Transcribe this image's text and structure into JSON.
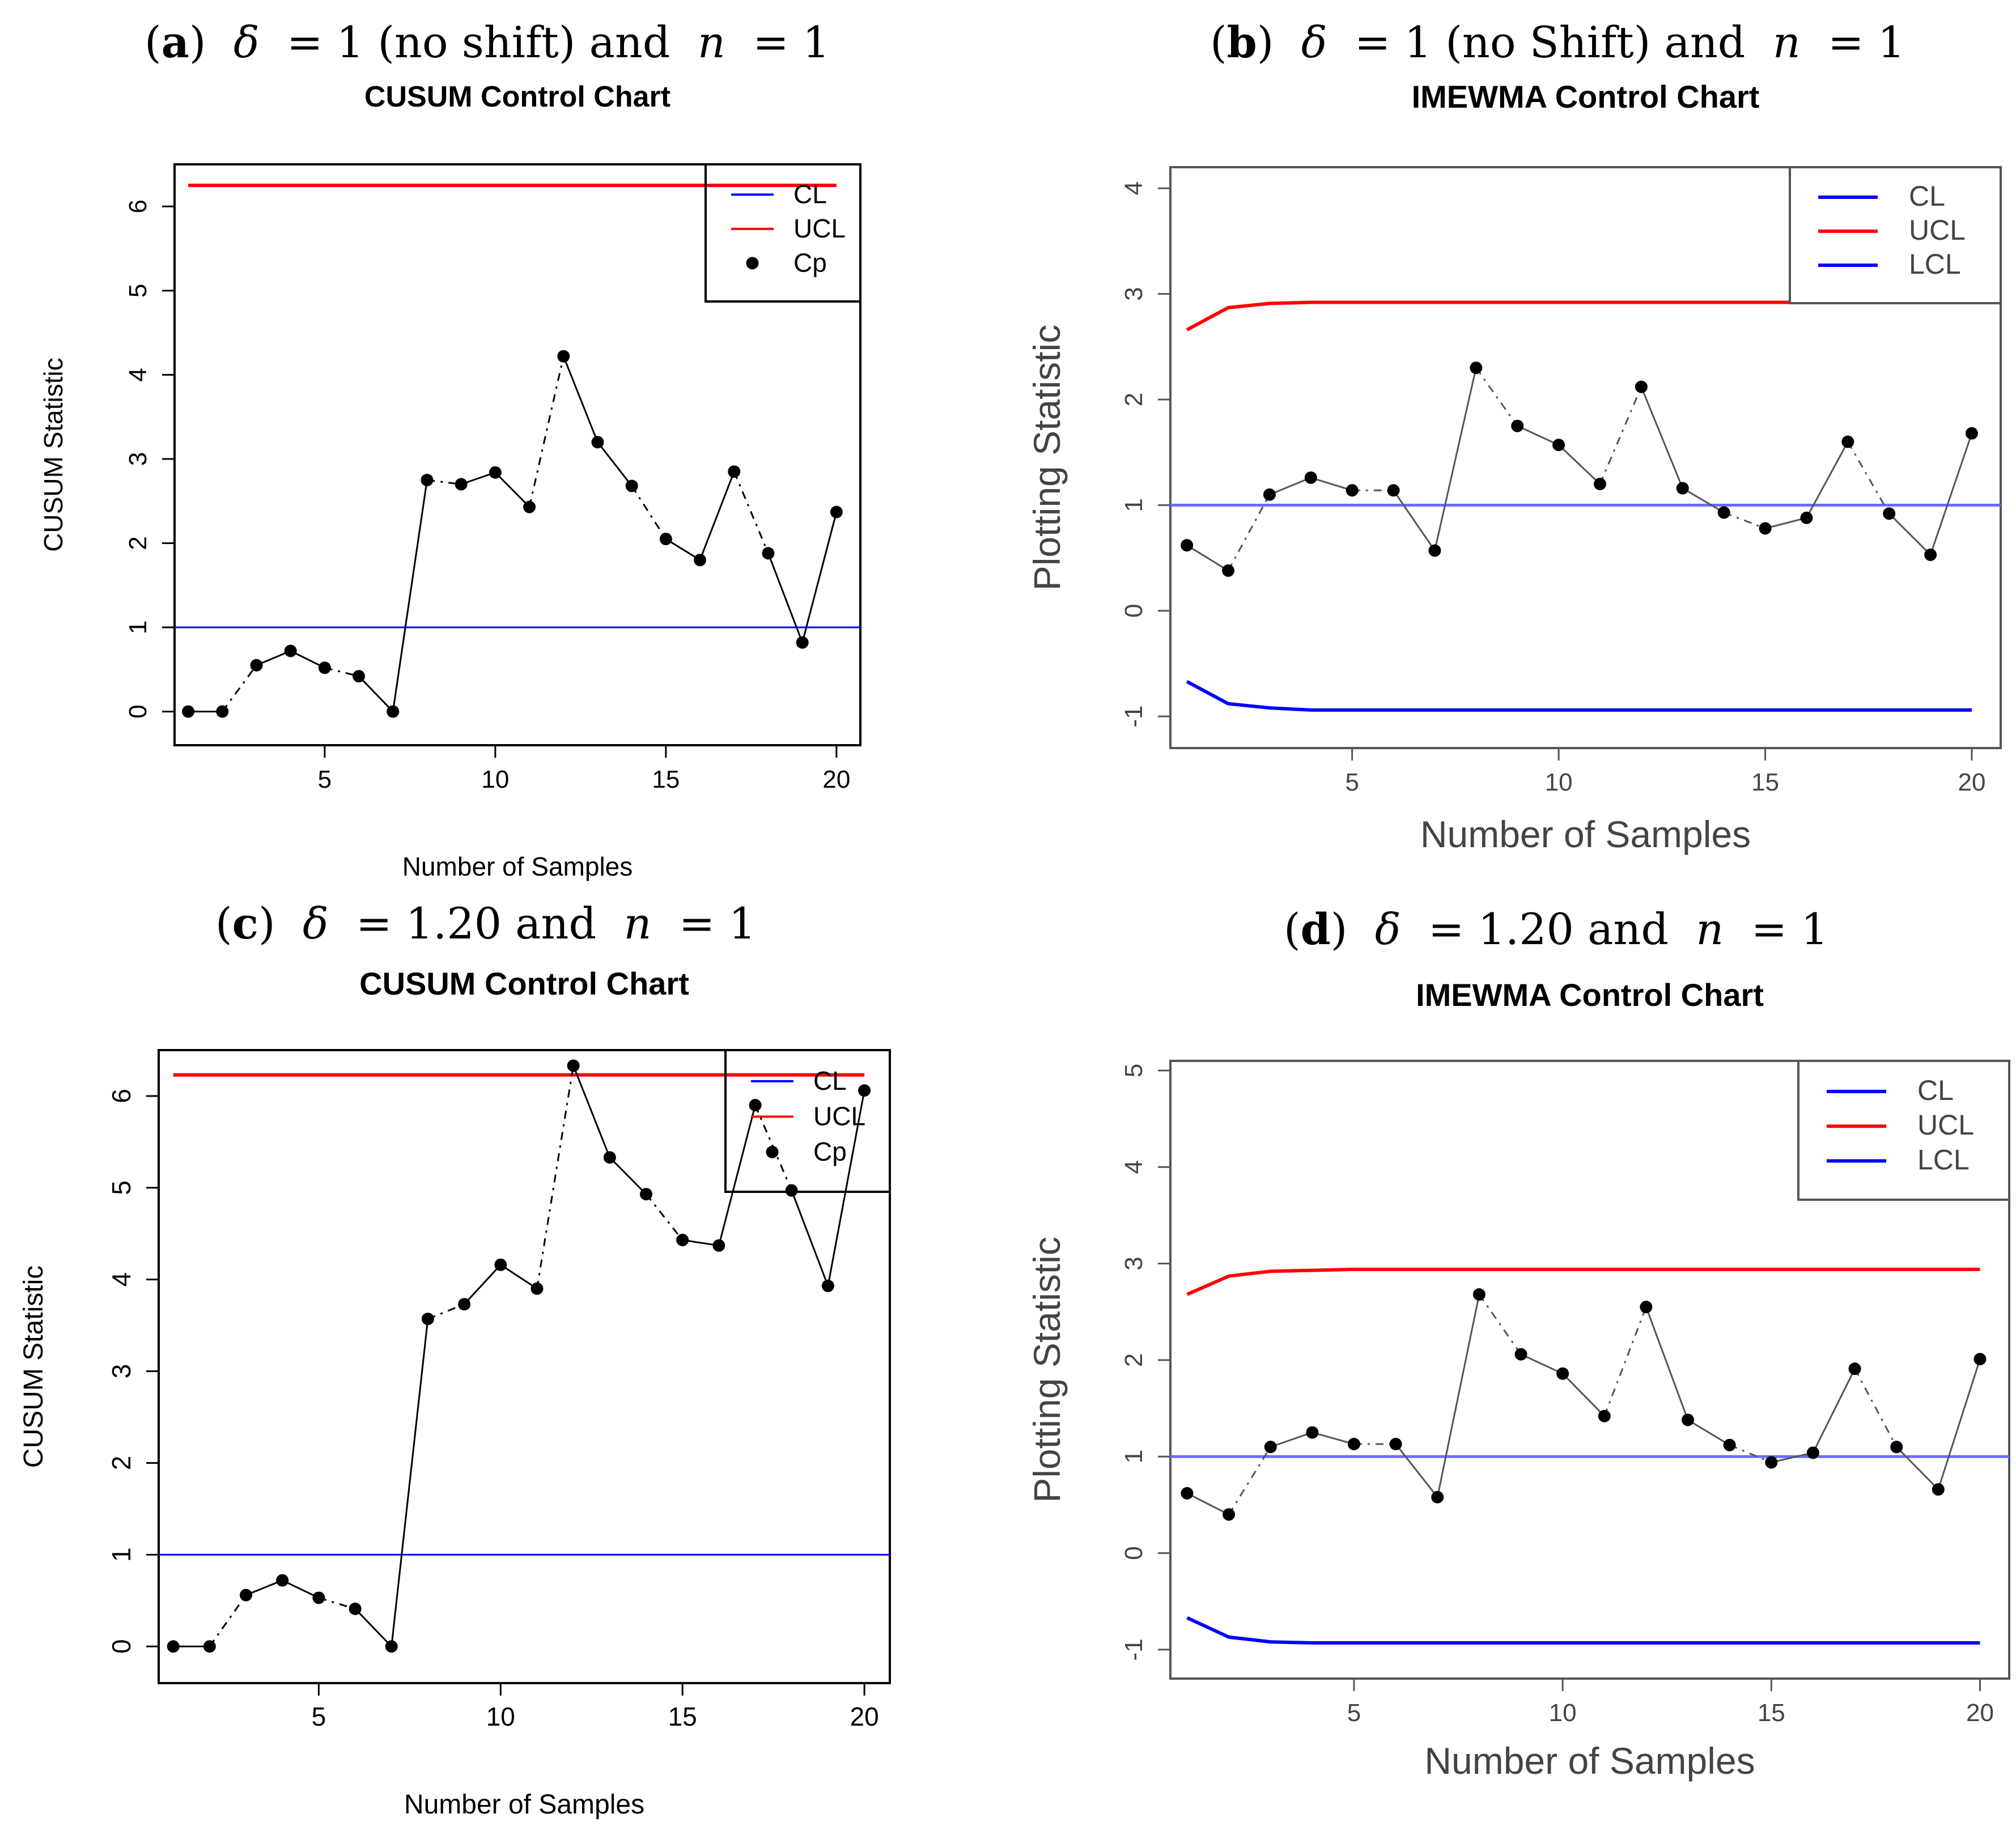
{
  "chart_data": [
    {
      "id": "a",
      "type": "line",
      "caption": {
        "label": "a",
        "delta": "1",
        "shift_note": "(no shift)",
        "n": "1"
      },
      "title": "CUSUM Control Chart",
      "xlabel": "Number of Samples",
      "ylabel": "CUSUM Statistic",
      "xlim": [
        0.6,
        20.7
      ],
      "ylim": [
        -0.4,
        6.5
      ],
      "xticks": [
        5,
        10,
        15,
        20
      ],
      "yticks": [
        0,
        1,
        2,
        3,
        4,
        5,
        6
      ],
      "legend": {
        "position": "top-right",
        "entries": [
          "CL",
          "UCL",
          "Cp"
        ]
      },
      "colors": {
        "cl": "#0000ff",
        "ucl": "#ff0000",
        "points": "#000000"
      },
      "x": [
        1,
        2,
        3,
        4,
        5,
        6,
        7,
        8,
        9,
        10,
        11,
        12,
        13,
        14,
        15,
        16,
        17,
        18,
        19,
        20
      ],
      "series": [
        {
          "name": "Cp",
          "values": [
            0,
            0,
            0.55,
            0.72,
            0.52,
            0.42,
            0,
            2.75,
            2.7,
            2.84,
            2.43,
            4.22,
            3.2,
            2.68,
            2.05,
            1.8,
            2.85,
            1.88,
            0.82,
            2.37
          ]
        }
      ],
      "cl": 1,
      "ucl": 6.25
    },
    {
      "id": "b",
      "type": "line",
      "caption": {
        "label": "b",
        "delta": "1",
        "shift_note": "(no Shift)",
        "n": "1"
      },
      "title": "IMEWMA Control Chart",
      "xlabel": "Number of Samples",
      "ylabel": "Plotting Statistic",
      "xlim": [
        0.6,
        20.7
      ],
      "ylim": [
        -1.3,
        4.2
      ],
      "xticks": [
        5,
        10,
        15,
        20
      ],
      "yticks": [
        -1,
        0,
        1,
        2,
        3,
        4
      ],
      "legend": {
        "position": "top-right",
        "entries": [
          "CL",
          "UCL",
          "LCL"
        ]
      },
      "colors": {
        "cl": "#0000ff",
        "ucl": "#ff0000",
        "lcl": "#0000ff",
        "points": "#000000"
      },
      "x": [
        1,
        2,
        3,
        4,
        5,
        6,
        7,
        8,
        9,
        10,
        11,
        12,
        13,
        14,
        15,
        16,
        17,
        18,
        19,
        20
      ],
      "series": [
        {
          "name": "Plotting Statistic",
          "values": [
            0.62,
            0.38,
            1.1,
            1.26,
            1.14,
            1.14,
            0.57,
            2.3,
            1.75,
            1.57,
            1.2,
            2.12,
            1.16,
            0.93,
            0.78,
            0.88,
            1.6,
            0.92,
            0.53,
            1.68
          ]
        }
      ],
      "cl": 1,
      "ucl": [
        2.66,
        2.87,
        2.91,
        2.92,
        2.92,
        2.92,
        2.92,
        2.92,
        2.92,
        2.92,
        2.92,
        2.92,
        2.92,
        2.92,
        2.92,
        2.92,
        2.92,
        2.92,
        2.92,
        2.92
      ],
      "lcl": [
        -0.67,
        -0.88,
        -0.92,
        -0.94,
        -0.94,
        -0.94,
        -0.94,
        -0.94,
        -0.94,
        -0.94,
        -0.94,
        -0.94,
        -0.94,
        -0.94,
        -0.94,
        -0.94,
        -0.94,
        -0.94,
        -0.94,
        -0.94
      ]
    },
    {
      "id": "c",
      "type": "line",
      "caption": {
        "label": "c",
        "delta": "1.20",
        "shift_note": "",
        "n": "1"
      },
      "title": "CUSUM Control Chart",
      "xlabel": "Number of Samples",
      "ylabel": "CUSUM Statistic",
      "xlim": [
        0.6,
        20.7
      ],
      "ylim": [
        -0.4,
        6.5
      ],
      "xticks": [
        5,
        10,
        15,
        20
      ],
      "yticks": [
        0,
        1,
        2,
        3,
        4,
        5,
        6
      ],
      "legend": {
        "position": "top-right",
        "entries": [
          "CL",
          "UCL",
          "Cp"
        ]
      },
      "colors": {
        "cl": "#0000ff",
        "ucl": "#ff0000",
        "points": "#000000"
      },
      "x": [
        1,
        2,
        3,
        4,
        5,
        6,
        7,
        8,
        9,
        10,
        11,
        12,
        13,
        14,
        15,
        16,
        17,
        18,
        19,
        20
      ],
      "series": [
        {
          "name": "Cp",
          "values": [
            0,
            0,
            0.56,
            0.72,
            0.53,
            0.41,
            0,
            3.57,
            3.73,
            4.16,
            3.9,
            6.33,
            5.33,
            4.93,
            4.43,
            4.37,
            5.9,
            4.97,
            3.93,
            6.06
          ]
        }
      ],
      "cl": 1,
      "ucl": 6.23
    },
    {
      "id": "d",
      "type": "line",
      "caption": {
        "label": "d",
        "delta": "1.20",
        "shift_note": "",
        "n": "1"
      },
      "title": "IMEWMA Control Chart",
      "xlabel": "Number of Samples",
      "ylabel": "Plotting Statistic",
      "xlim": [
        0.6,
        20.7
      ],
      "ylim": [
        -1.3,
        5.1
      ],
      "xticks": [
        5,
        10,
        15,
        20
      ],
      "yticks": [
        -1,
        0,
        1,
        2,
        3,
        4,
        5
      ],
      "legend": {
        "position": "top-right",
        "entries": [
          "CL",
          "UCL",
          "LCL"
        ]
      },
      "colors": {
        "cl": "#0000ff",
        "ucl": "#ff0000",
        "lcl": "#0000ff",
        "points": "#000000"
      },
      "x": [
        1,
        2,
        3,
        4,
        5,
        6,
        7,
        8,
        9,
        10,
        11,
        12,
        13,
        14,
        15,
        16,
        17,
        18,
        19,
        20
      ],
      "series": [
        {
          "name": "Plotting Statistic",
          "values": [
            0.62,
            0.4,
            1.1,
            1.25,
            1.13,
            1.13,
            0.58,
            2.68,
            2.06,
            1.86,
            1.42,
            2.55,
            1.38,
            1.12,
            0.94,
            1.04,
            1.91,
            1.1,
            0.66,
            2.01
          ]
        }
      ],
      "cl": 1,
      "ucl": [
        2.68,
        2.87,
        2.92,
        2.93,
        2.94,
        2.94,
        2.94,
        2.94,
        2.94,
        2.94,
        2.94,
        2.94,
        2.94,
        2.94,
        2.94,
        2.94,
        2.94,
        2.94,
        2.94,
        2.94
      ],
      "lcl": [
        -0.67,
        -0.87,
        -0.92,
        -0.93,
        -0.93,
        -0.93,
        -0.93,
        -0.93,
        -0.93,
        -0.93,
        -0.93,
        -0.93,
        -0.93,
        -0.93,
        -0.93,
        -0.93,
        -0.93,
        -0.93,
        -0.93,
        -0.93
      ]
    }
  ]
}
